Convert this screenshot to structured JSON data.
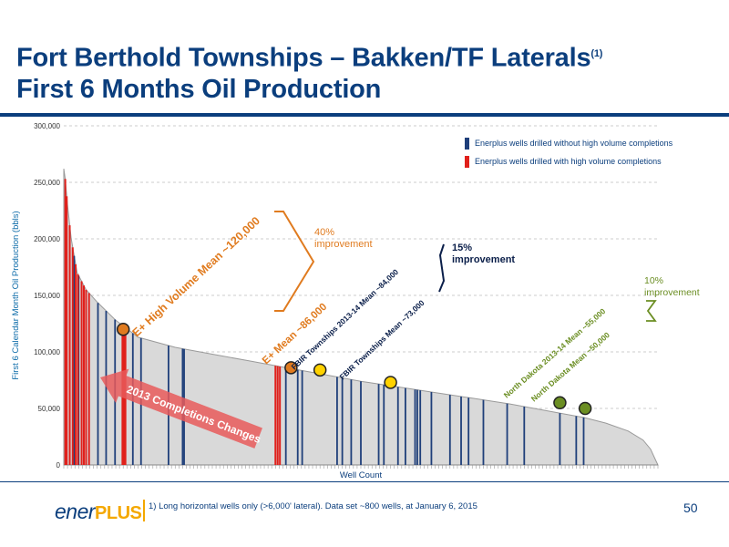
{
  "slide": {
    "title_line1": "Fort Berthold Townships – Bakken/TF Laterals",
    "title_sup": "(1)",
    "title_line2": "First 6 Months Oil Production",
    "footnote": "1) Long horizontal wells only (>6,000' lateral).  Data set ~800 wells, at January 6, 2015",
    "page_number": "50",
    "logo_text": "ener",
    "logo_plus": "PLUS",
    "colors": {
      "brand_blue": "#0b3e7d",
      "orange": "#e07b1f",
      "green": "#6b8e23",
      "red": "#e0201b",
      "well_blue": "#1f3f7a",
      "area_gray": "#d9d9d9"
    }
  },
  "chart_data": {
    "type": "area",
    "xlabel": "Well Count",
    "ylabel": "First 6 Calendar Month Oil Production (bbls)",
    "ylim": [
      0,
      300000
    ],
    "yticks": [
      0,
      50000,
      100000,
      150000,
      200000,
      250000,
      300000
    ],
    "ytick_labels": [
      "0",
      "50,000",
      "100,000",
      "150,000",
      "200,000",
      "250,000",
      "300,000"
    ],
    "well_count": 800,
    "grid": true,
    "legend": {
      "position": "top-right",
      "items": [
        {
          "label": "Enerplus wells drilled without high volume completions",
          "color": "#1f3f7a"
        },
        {
          "label": "Enerplus wells drilled with high volume completions",
          "color": "#e0201b"
        }
      ]
    },
    "curve": [
      {
        "x": 0,
        "y": 262000
      },
      {
        "x": 2,
        "y": 253000
      },
      {
        "x": 5,
        "y": 230000
      },
      {
        "x": 10,
        "y": 200000
      },
      {
        "x": 18,
        "y": 170000
      },
      {
        "x": 30,
        "y": 155000
      },
      {
        "x": 45,
        "y": 144000
      },
      {
        "x": 70,
        "y": 128000
      },
      {
        "x": 100,
        "y": 113000
      },
      {
        "x": 150,
        "y": 104000
      },
      {
        "x": 200,
        "y": 98000
      },
      {
        "x": 250,
        "y": 92000
      },
      {
        "x": 300,
        "y": 86000
      },
      {
        "x": 350,
        "y": 80000
      },
      {
        "x": 400,
        "y": 74000
      },
      {
        "x": 450,
        "y": 69000
      },
      {
        "x": 500,
        "y": 64000
      },
      {
        "x": 550,
        "y": 59000
      },
      {
        "x": 600,
        "y": 54000
      },
      {
        "x": 650,
        "y": 48000
      },
      {
        "x": 700,
        "y": 42000
      },
      {
        "x": 730,
        "y": 37000
      },
      {
        "x": 760,
        "y": 30000
      },
      {
        "x": 780,
        "y": 22000
      },
      {
        "x": 790,
        "y": 14000
      },
      {
        "x": 797,
        "y": 4000
      },
      {
        "x": 800,
        "y": 0
      }
    ],
    "red_wells": [
      2,
      4,
      8,
      12,
      16,
      19,
      24,
      27,
      30,
      34,
      79,
      80,
      81,
      82,
      83,
      285,
      288,
      291
    ],
    "blue_wells": [
      14,
      20,
      46,
      57,
      69,
      93,
      104,
      141,
      160,
      162,
      299,
      315,
      321,
      368,
      375,
      387,
      400,
      424,
      431,
      450,
      460,
      473,
      476,
      480,
      495,
      520,
      535,
      545,
      565,
      597,
      620,
      668,
      690,
      700
    ],
    "means": [
      {
        "label": "E+ High Volume Mean  ~120,000",
        "value": 120000,
        "x": 80,
        "color": "#e07b1f"
      },
      {
        "label": "E+ Mean  ~86,000",
        "value": 86000,
        "x": 306,
        "color": "#e07b1f"
      },
      {
        "label": "FBIR Townships 2013-14 Mean    ~84,000",
        "value": 84000,
        "x": 345,
        "color": "#ffd200"
      },
      {
        "label": "FBIR Townships  Mean    ~73,000",
        "value": 73000,
        "x": 440,
        "color": "#ffd200"
      },
      {
        "label": "North Dakota 2013-14 Mean ~55,000",
        "value": 55000,
        "x": 668,
        "color": "#6b8e23"
      },
      {
        "label": "North Dakota  Mean ~50,000",
        "value": 50000,
        "x": 702,
        "color": "#6b8e23"
      }
    ],
    "annotations": [
      {
        "id": "improve_hv",
        "text_lines": [
          "40%",
          "improvement"
        ],
        "color": "#e07b1f"
      },
      {
        "id": "improve_fbir",
        "text_lines": [
          "15%",
          "improvement"
        ],
        "color": "#0b1f4a"
      },
      {
        "id": "improve_nd",
        "text_lines": [
          "10%",
          "improvement"
        ],
        "color": "#6b8e23"
      },
      {
        "id": "arrow",
        "text": "2013 Completions Changes",
        "color": "#e85a5a"
      }
    ]
  }
}
